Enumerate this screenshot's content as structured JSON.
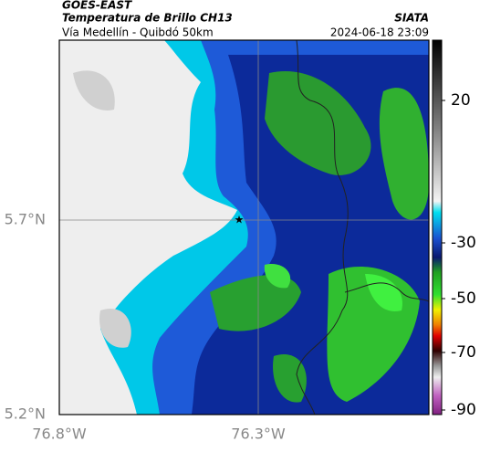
{
  "header": {
    "satellite": "GOES-EAST",
    "title": "Temperatura de Brillo CH13",
    "source": "SIATA",
    "subtitle": "Vía Medellín - Quibdó 50km",
    "timestamp": "2024-06-18 23:09"
  },
  "axes": {
    "y_labels": [
      "5.7°N",
      "5.2°N"
    ],
    "x_labels": [
      "76.8°W",
      "76.3°W"
    ]
  },
  "colorbar": {
    "ticks": [
      20,
      -30,
      -50,
      -70,
      -90
    ]
  }
}
